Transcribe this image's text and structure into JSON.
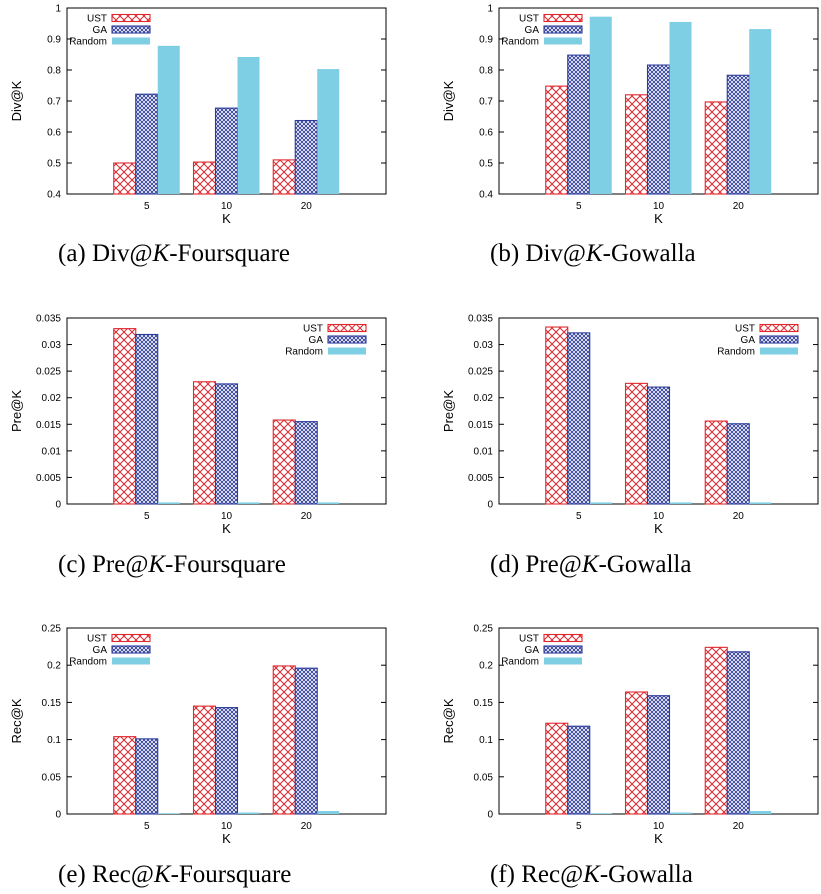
{
  "colors": {
    "ust": "#e0282e",
    "ga": "#2b3a9b",
    "random": "#7ecfe3",
    "axis": "#000000"
  },
  "legend_labels": [
    "UST",
    "GA",
    "Random"
  ],
  "chart_data": [
    {
      "type": "bar",
      "categories": [
        "5",
        "10",
        "20"
      ],
      "series": [
        {
          "name": "UST",
          "values": [
            0.5,
            0.503,
            0.51
          ]
        },
        {
          "name": "GA",
          "values": [
            0.722,
            0.677,
            0.637
          ]
        },
        {
          "name": "Random",
          "values": [
            0.878,
            0.842,
            0.803
          ]
        }
      ],
      "xlabel": "K",
      "ylabel": "Div@K",
      "ylim": [
        0.4,
        1.0
      ],
      "yticks": [
        "0.4",
        "0.5",
        "0.6",
        "0.7",
        "0.8",
        "0.9",
        "1"
      ],
      "legend_position": "top-left",
      "caption": {
        "prefix": "(a)  Div@",
        "var": "K",
        "suffix": "-Foursquare"
      }
    },
    {
      "type": "bar",
      "categories": [
        "5",
        "10",
        "20"
      ],
      "series": [
        {
          "name": "UST",
          "values": [
            0.748,
            0.72,
            0.697
          ]
        },
        {
          "name": "GA",
          "values": [
            0.848,
            0.816,
            0.783
          ]
        },
        {
          "name": "Random",
          "values": [
            0.972,
            0.955,
            0.932
          ]
        }
      ],
      "xlabel": "K",
      "ylabel": "Div@K",
      "ylim": [
        0.4,
        1.0
      ],
      "yticks": [
        "0.4",
        "0.5",
        "0.6",
        "0.7",
        "0.8",
        "0.9",
        "1"
      ],
      "legend_position": "top-left",
      "caption": {
        "prefix": "(b)  Div@",
        "var": "K",
        "suffix": "-Gowalla"
      }
    },
    {
      "type": "bar",
      "categories": [
        "5",
        "10",
        "20"
      ],
      "series": [
        {
          "name": "UST",
          "values": [
            0.033,
            0.023,
            0.0158
          ]
        },
        {
          "name": "GA",
          "values": [
            0.0319,
            0.0226,
            0.0155
          ]
        },
        {
          "name": "Random",
          "values": [
            0.0003,
            0.0003,
            0.0003
          ]
        }
      ],
      "xlabel": "K",
      "ylabel": "Pre@K",
      "ylim": [
        0,
        0.035
      ],
      "yticks": [
        "0",
        "0.005",
        "0.01",
        "0.015",
        "0.02",
        "0.025",
        "0.03",
        "0.035"
      ],
      "legend_position": "top-right",
      "caption": {
        "prefix": "(c)  Pre@",
        "var": "K",
        "suffix": "-Foursquare"
      }
    },
    {
      "type": "bar",
      "categories": [
        "5",
        "10",
        "20"
      ],
      "series": [
        {
          "name": "UST",
          "values": [
            0.0333,
            0.0227,
            0.0156
          ]
        },
        {
          "name": "GA",
          "values": [
            0.0322,
            0.022,
            0.0151
          ]
        },
        {
          "name": "Random",
          "values": [
            0.0003,
            0.0003,
            0.0003
          ]
        }
      ],
      "xlabel": "K",
      "ylabel": "Pre@K",
      "ylim": [
        0,
        0.035
      ],
      "yticks": [
        "0",
        "0.005",
        "0.01",
        "0.015",
        "0.02",
        "0.025",
        "0.03",
        "0.035"
      ],
      "legend_position": "top-right",
      "caption": {
        "prefix": "(d)  Pre@",
        "var": "K",
        "suffix": "-Gowalla"
      }
    },
    {
      "type": "bar",
      "categories": [
        "5",
        "10",
        "20"
      ],
      "series": [
        {
          "name": "UST",
          "values": [
            0.104,
            0.145,
            0.199
          ]
        },
        {
          "name": "GA",
          "values": [
            0.101,
            0.143,
            0.196
          ]
        },
        {
          "name": "Random",
          "values": [
            0.001,
            0.002,
            0.004
          ]
        }
      ],
      "xlabel": "K",
      "ylabel": "Rec@K",
      "ylim": [
        0,
        0.25
      ],
      "yticks": [
        "0",
        "0.05",
        "0.1",
        "0.15",
        "0.2",
        "0.25"
      ],
      "legend_position": "top-left",
      "caption": {
        "prefix": "(e)  Rec@",
        "var": "K",
        "suffix": "-Foursquare"
      }
    },
    {
      "type": "bar",
      "categories": [
        "5",
        "10",
        "20"
      ],
      "series": [
        {
          "name": "UST",
          "values": [
            0.122,
            0.164,
            0.224
          ]
        },
        {
          "name": "GA",
          "values": [
            0.118,
            0.159,
            0.218
          ]
        },
        {
          "name": "Random",
          "values": [
            0.001,
            0.002,
            0.004
          ]
        }
      ],
      "xlabel": "K",
      "ylabel": "Rec@K",
      "ylim": [
        0,
        0.25
      ],
      "yticks": [
        "0",
        "0.05",
        "0.1",
        "0.15",
        "0.2",
        "0.25"
      ],
      "legend_position": "top-left",
      "caption": {
        "prefix": "(f)  Rec@",
        "var": "K",
        "suffix": "-Gowalla"
      }
    }
  ]
}
